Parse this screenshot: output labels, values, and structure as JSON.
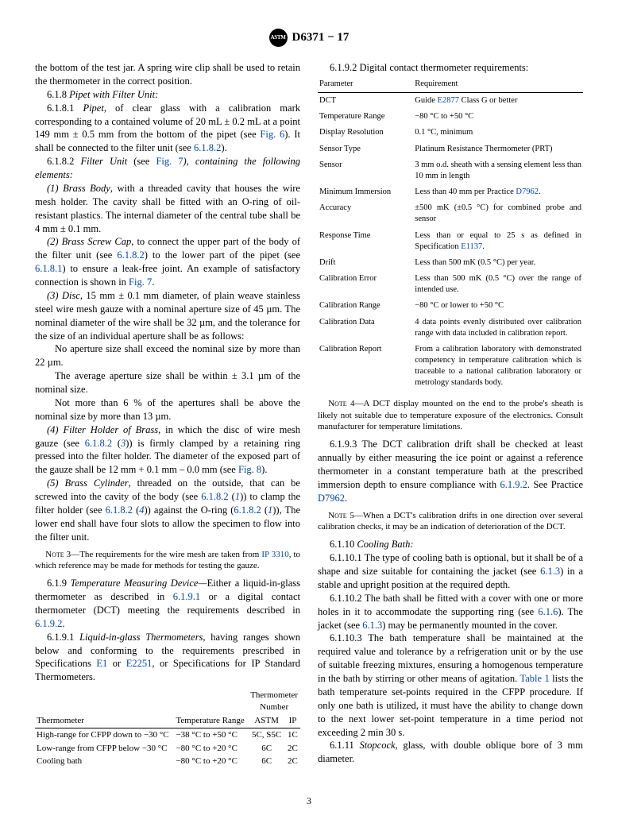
{
  "header": {
    "designation": "D6371 − 17"
  },
  "left": {
    "intro": "the bottom of the test jar. A spring wire clip shall be used to retain the thermometer in the correct position.",
    "s618": "6.1.8 ",
    "s618_title": "Pipet with Filter Unit:",
    "s6181_a": "6.1.8.1 ",
    "s6181_b1": "Pipet,",
    "s6181_b2": " of clear glass with a calibration mark corresponding to a contained volume of 20 mL ± 0.2 mL at a point 149 mm ± 0.5 mm from the bottom of the pipet (see ",
    "s6181_fig6": "Fig. 6",
    "s6181_b3": "). It shall be connected to the filter unit (see ",
    "s6181_ref": "6.1.8.2",
    "s6181_b4": ").",
    "s6182_a": "6.1.8.2 ",
    "s6182_b1": "Filter Unit",
    "s6182_b2": " (see ",
    "s6182_fig7": "Fig. 7",
    "s6182_b3": "), containing the following elements:",
    "el1_a": "(1) Brass Body",
    "el1_b": ", with a threaded cavity that houses the wire mesh holder. The cavity shall be fitted with an O-ring of oil-resistant plastics. The internal diameter of the central tube shall be 4 mm ± 0.1 mm.",
    "el2_a": "(2) Brass Screw Cap",
    "el2_b1": ", to connect the upper part of the body of the filter unit (see ",
    "el2_ref1": "6.1.8.2",
    "el2_b2": ") to the lower part of the pipet (see ",
    "el2_ref2": "6.1.8.1",
    "el2_b3": ") to ensure a leak-free joint. An example of satisfactory connection is shown in ",
    "el2_fig7": "Fig. 7",
    "el2_b4": ".",
    "el3_a": "(3) Disc",
    "el3_b": ", 15 mm ± 0.1 mm diameter, of plain weave stainless steel wire mesh gauze with a nominal aperture size of 45 µm. The nominal diameter of the wire shall be 32 µm, and the tolerance for the size of an individual aperture shall be as follows:",
    "el3_line1": "No aperture size shall exceed the nominal size by more than 22 µm.",
    "el3_line2": "The average aperture size shall be within ± 3.1 µm of the nominal size.",
    "el3_line3": "Not more than 6 % of the apertures shall be above the nominal size by more than 13 µm.",
    "el4_a": "(4) Filter Holder of Brass",
    "el4_b1": ", in which the disc of wire mesh gauze (see ",
    "el4_ref1": "6.1.8.2",
    "el4_b2": " (",
    "el4_ref2": "3",
    "el4_b3": ")) is firmly clamped by a retaining ring pressed into the filter holder. The diameter of the exposed part of the gauze shall be 12 mm + 0.1 mm – 0.0 mm (see ",
    "el4_fig8": "Fig. 8",
    "el4_b4": ").",
    "el5_a": "(5) Brass Cylinder",
    "el5_b1": ", threaded on the outside, that can be screwed into the cavity of the body (see ",
    "el5_ref1": "6.1.8.2",
    "el5_b2": " (",
    "el5_ref2": "1",
    "el5_b3": ")) to clamp the filter holder (see ",
    "el5_ref3": "6.1.8.2",
    "el5_b4": " (",
    "el5_ref4": "4",
    "el5_b5": ")) against the O-ring (",
    "el5_ref5": "6.1.8.2",
    "el5_b6": " (",
    "el5_ref6": "1",
    "el5_b7": ")), The lower end shall have four slots to allow the specimen to flow into the filter unit.",
    "note3_label": "Note 3—",
    "note3_a": "The requirements for the wire mesh are taken from ",
    "note3_ref": "IP 3310",
    "note3_b": ", to which reference may be made for methods for testing the gauze.",
    "s619_a": "6.1.9 ",
    "s619_t": "Temperature Measuring Device—",
    "s619_b1": "Either a liquid-in-glass thermometer as described in ",
    "s619_ref1": "6.1.9.1",
    "s619_b2": " or a digital contact thermometer (DCT) meeting the requirements described in ",
    "s619_ref2": "6.1.9.2",
    "s619_b3": ".",
    "s6191_a": "6.1.9.1 ",
    "s6191_t": "Liquid-in-glass Thermometers,",
    "s6191_b1": " having ranges shown below and conforming to the requirements prescribed in Specifications ",
    "s6191_ref1": "E1",
    "s6191_b2": " or ",
    "s6191_ref2": "E2251",
    "s6191_b3": ", or Specifications for IP Standard Thermometers."
  },
  "thermo_table": {
    "h1": "Thermometer",
    "h2": "Temperature Range",
    "h3_top": "Thermometer",
    "h3_bot": "Number",
    "h3a": "ASTM",
    "h3b": "IP",
    "rows": [
      {
        "a": "High-range for CFPP down to −30 °C",
        "b": "−38 °C to +50 °C",
        "c": "5C, S5C",
        "d": "1C"
      },
      {
        "a": "Low-range from CFPP below −30 °C",
        "b": "−80 °C to +20 °C",
        "c": "6C",
        "d": "2C"
      },
      {
        "a": "Cooling bath",
        "b": "−80 °C to +20 °C",
        "c": "6C",
        "d": "2C"
      }
    ]
  },
  "right": {
    "s6192": "6.1.9.2 Digital contact thermometer requirements:"
  },
  "req_table": {
    "h1": "Parameter",
    "h2": "Requirement",
    "rows": [
      {
        "p": "DCT",
        "r_a": "Guide ",
        "r_link": "E2877",
        "r_b": " Class G or better"
      },
      {
        "p": "Temperature Range",
        "r": "−80 °C to +50 °C"
      },
      {
        "p": "Display Resolution",
        "r": "0.1 °C, minimum"
      },
      {
        "p": "Sensor Type",
        "r": "Platinum Resistance Thermometer (PRT)"
      },
      {
        "p": "Sensor",
        "r": "3 mm o.d. sheath with a sensing element less than 10 mm in length"
      },
      {
        "p": "Minimum Immersion",
        "r_a": "Less than 40 mm per Practice ",
        "r_link": "D7962",
        "r_b": "."
      },
      {
        "p": "Accuracy",
        "r": "±500 mK (±0.5 °C) for combined probe and sensor"
      },
      {
        "p": "Response Time",
        "r_a": "Less than or equal to 25 s as defined in Specification ",
        "r_link": "E1137",
        "r_b": "."
      },
      {
        "p": "Drift",
        "r": "Less than 500 mK (0.5 °C) per year."
      },
      {
        "p": "Calibration Error",
        "r": "Less than 500 mK (0.5 °C) over the range of intended use."
      },
      {
        "p": "Calibration Range",
        "r": "−80 °C or lower to +50 °C"
      },
      {
        "p": "Calibration Data",
        "r": "4 data points evenly distributed over calibration range with data included in calibration report."
      },
      {
        "p": "Calibration Report",
        "r": "From a calibration laboratory with demonstrated competency in temperature calibration which is traceable to a national calibration laboratory or metrology standards body."
      }
    ]
  },
  "right2": {
    "note4_label": "Note 4—",
    "note4": "A DCT display mounted on the end to the probe's sheath is likely not suitable due to temperature exposure of the electronics. Consult manufacturer for temperature limitations.",
    "s6193_a": "6.1.9.3 The DCT calibration drift shall be checked at least annually by either measuring the ice point or against a reference thermometer in a constant temperature bath at the prescribed immersion depth to ensure compliance with ",
    "s6193_ref1": "6.1.9.2",
    "s6193_b": ". See Practice ",
    "s6193_ref2": "D7962",
    "s6193_c": ".",
    "note5_label": "Note 5—",
    "note5": "When a DCT's calibration drifts in one direction over several calibration checks, it may be an indication of deterioration of the DCT.",
    "s6110_a": "6.1.10 ",
    "s6110_t": "Cooling Bath:",
    "s61101_a": "6.1.10.1 The type of cooling bath is optional, but it shall be of a shape and size suitable for containing the jacket (see ",
    "s61101_ref": "6.1.3",
    "s61101_b": ") in a stable and upright position at the required depth.",
    "s61102_a": "6.1.10.2 The bath shall be fitted with a cover with one or more holes in it to accommodate the supporting ring (see ",
    "s61102_ref1": "6.1.6",
    "s61102_b": "). The jacket (see ",
    "s61102_ref2": "6.1.3",
    "s61102_c": ") may be permanently mounted in the cover.",
    "s61103_a": "6.1.10.3 The bath temperature shall be maintained at the required value and tolerance by a refrigeration unit or by the use of suitable freezing mixtures, ensuring a homogenous temperature in the bath by stirring or other means of agitation. ",
    "s61103_ref": "Table 1",
    "s61103_b": " lists the bath temperature set-points required in the CFPP procedure. If only one bath is utilized, it must have the ability to change down to the next lower set-point temperature in a time period not exceeding 2 min 30 s.",
    "s6111_a": "6.1.11 ",
    "s6111_t": "Stopcock,",
    "s6111_b": " glass, with double oblique bore of 3 mm diameter."
  },
  "pagenum": "3"
}
